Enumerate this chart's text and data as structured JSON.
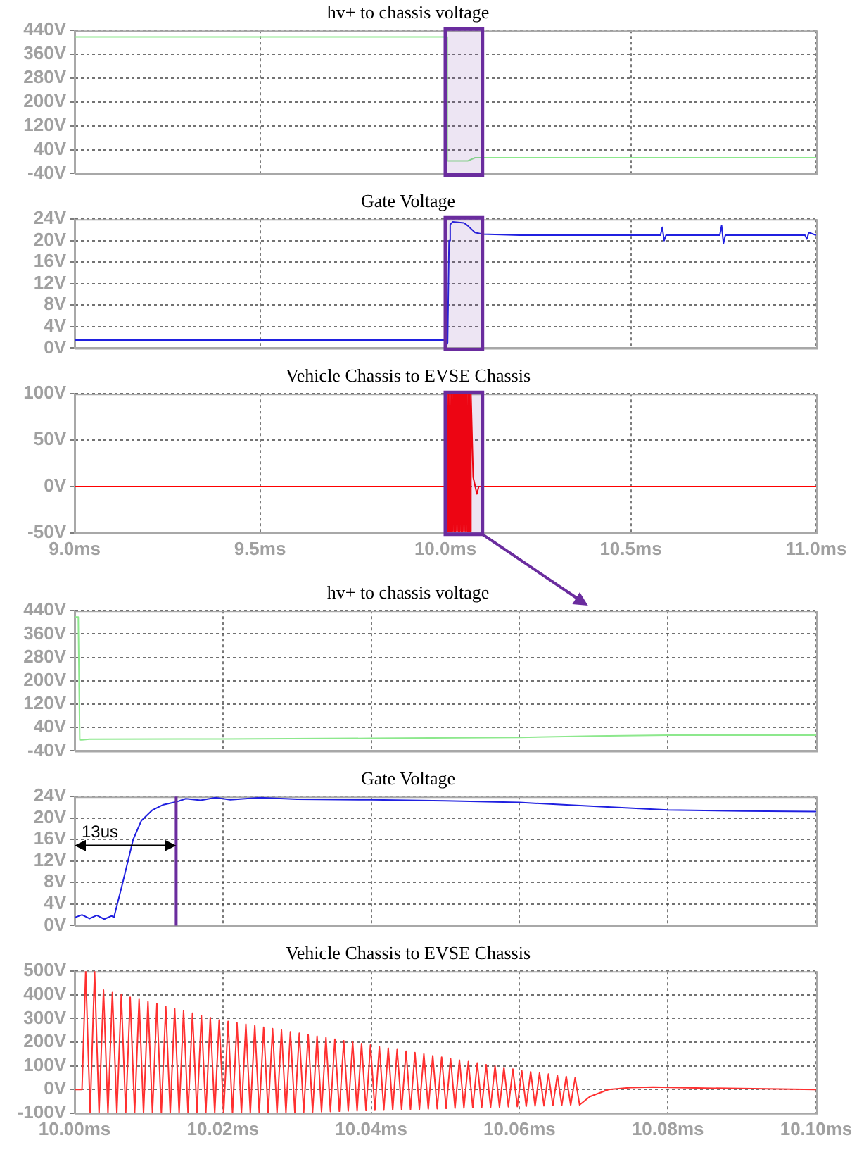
{
  "chart_data": [
    {
      "type": "line",
      "title": "hv+ to chassis voltage",
      "color": "#8de88d",
      "grid": true,
      "marker": "none",
      "line_style": "solid",
      "tick_labels": "y",
      "xlim": [
        9.0,
        11.0
      ],
      "xticks": [
        {
          "value": 9.0,
          "label": null
        },
        {
          "value": 9.5,
          "label": null
        },
        {
          "value": 10.0,
          "label": null
        },
        {
          "value": 10.5,
          "label": null
        },
        {
          "value": 11.0,
          "label": null
        }
      ],
      "ylim": [
        -40,
        440
      ],
      "yticks": [
        {
          "value": -40,
          "label": "-40V"
        },
        {
          "value": 40,
          "label": "40V"
        },
        {
          "value": 120,
          "label": "120V"
        },
        {
          "value": 200,
          "label": "200V"
        },
        {
          "value": 280,
          "label": "280V"
        },
        {
          "value": 360,
          "label": "360V"
        },
        {
          "value": 440,
          "label": "440V"
        }
      ],
      "x": [
        9.0,
        10.003,
        10.005,
        10.06,
        10.08,
        11.0
      ],
      "bands": [
        {
          "axis": "x",
          "from": 10.0,
          "to": 10.1,
          "color": "#6a2c9e"
        }
      ],
      "values": [
        418,
        418,
        2,
        2,
        13,
        13
      ]
    },
    {
      "type": "line",
      "title": "Gate Voltage",
      "color": "#2020e0",
      "grid": true,
      "marker": "none",
      "line_style": "solid",
      "tick_labels": "y",
      "xlim": [
        9.0,
        11.0
      ],
      "xticks": [
        {
          "value": 9.0,
          "label": null
        },
        {
          "value": 9.5,
          "label": null
        },
        {
          "value": 10.0,
          "label": null
        },
        {
          "value": 10.5,
          "label": null
        },
        {
          "value": 11.0,
          "label": null
        }
      ],
      "ylim": [
        0,
        24
      ],
      "yticks": [
        {
          "value": 0,
          "label": "0V"
        },
        {
          "value": 4,
          "label": "4V"
        },
        {
          "value": 8,
          "label": "8V"
        },
        {
          "value": 12,
          "label": "12V"
        },
        {
          "value": 16,
          "label": "16V"
        },
        {
          "value": 20,
          "label": "20V"
        },
        {
          "value": 24,
          "label": "24V"
        }
      ],
      "x": [
        9.0,
        10.0,
        10.003,
        10.006,
        10.01,
        10.013,
        10.02,
        10.05,
        10.06,
        10.08,
        10.1,
        10.2,
        10.58,
        10.585,
        10.59,
        10.595,
        10.74,
        10.745,
        10.75,
        10.755,
        10.97,
        10.975,
        10.98,
        11.0
      ],
      "bands": [
        {
          "axis": "x",
          "from": 10.0,
          "to": 10.1,
          "color": "#6a2c9e"
        }
      ],
      "values": [
        1.5,
        1.5,
        0.5,
        1,
        20,
        23,
        23.5,
        23.3,
        22.8,
        21.5,
        21.2,
        21,
        21,
        22.5,
        20,
        21,
        21,
        22.8,
        19.5,
        21,
        21,
        20.3,
        21.5,
        21
      ]
    },
    {
      "type": "line",
      "title": "Vehicle Chassis to EVSE Chassis",
      "color": "#ff0000",
      "grid": true,
      "marker": "none",
      "line_style": "solid",
      "xlim": [
        9.0,
        11.0
      ],
      "xticks": [
        {
          "value": 9.0,
          "label": "9.0ms"
        },
        {
          "value": 9.5,
          "label": "9.5ms"
        },
        {
          "value": 10.0,
          "label": "10.0ms"
        },
        {
          "value": 10.5,
          "label": "10.5ms"
        },
        {
          "value": 11.0,
          "label": "11.0ms"
        }
      ],
      "ylim": [
        -50,
        100
      ],
      "yticks": [
        {
          "value": -50,
          "label": "-50V"
        },
        {
          "value": 0,
          "label": "0V"
        },
        {
          "value": 50,
          "label": "50V"
        },
        {
          "value": 100,
          "label": "100V"
        }
      ],
      "x": [
        9.0,
        10.0,
        10.001,
        10.003,
        10.005,
        10.007,
        10.009,
        10.011,
        10.013,
        10.015,
        10.017,
        10.019,
        10.021,
        10.023,
        10.025,
        10.027,
        10.029,
        10.031,
        10.033,
        10.035,
        10.037,
        10.039,
        10.041,
        10.043,
        10.045,
        10.047,
        10.049,
        10.051,
        10.053,
        10.055,
        10.057,
        10.059,
        10.061,
        10.063,
        10.065,
        10.067,
        10.069,
        10.075,
        10.085,
        10.09,
        11.0
      ],
      "bands": [
        {
          "axis": "x",
          "from": 10.0,
          "to": 10.1,
          "color": "#6a2c9e"
        }
      ],
      "values": [
        0,
        0,
        100,
        -48,
        100,
        -48,
        100,
        -48,
        100,
        -48,
        100,
        -48,
        100,
        -48,
        100,
        -48,
        100,
        -48,
        100,
        -48,
        100,
        -48,
        100,
        -48,
        100,
        -48,
        100,
        -48,
        100,
        -48,
        100,
        -48,
        100,
        -48,
        100,
        -48,
        100,
        10,
        -8,
        0,
        0
      ]
    },
    {
      "type": "line",
      "title": "hv+ to chassis voltage",
      "color": "#8de88d",
      "grid": true,
      "marker": "none",
      "line_style": "solid",
      "tick_labels": "y",
      "xlim": [
        10.0,
        10.1
      ],
      "xticks": [
        {
          "value": 10.0,
          "label": null
        },
        {
          "value": 10.02,
          "label": null
        },
        {
          "value": 10.04,
          "label": null
        },
        {
          "value": 10.06,
          "label": null
        },
        {
          "value": 10.08,
          "label": null
        },
        {
          "value": 10.1,
          "label": null
        }
      ],
      "ylim": [
        -40,
        440
      ],
      "yticks": [
        {
          "value": -40,
          "label": "-40V"
        },
        {
          "value": 40,
          "label": "40V"
        },
        {
          "value": 120,
          "label": "120V"
        },
        {
          "value": 200,
          "label": "200V"
        },
        {
          "value": 280,
          "label": "280V"
        },
        {
          "value": 360,
          "label": "360V"
        },
        {
          "value": 440,
          "label": "440V"
        }
      ],
      "x": [
        10.0,
        10.0005,
        10.0007,
        10.001,
        10.002,
        10.02,
        10.04,
        10.06,
        10.07,
        10.08,
        10.1
      ],
      "values": [
        418,
        418,
        -2,
        -2,
        0,
        1,
        3,
        6,
        11,
        14,
        14
      ]
    },
    {
      "type": "line",
      "title": "Gate Voltage",
      "color": "#2020e0",
      "grid": true,
      "marker": "none",
      "line_style": "solid",
      "tick_labels": "y",
      "xlim": [
        10.0,
        10.1
      ],
      "xticks": [
        {
          "value": 10.0,
          "label": null
        },
        {
          "value": 10.02,
          "label": null
        },
        {
          "value": 10.04,
          "label": null
        },
        {
          "value": 10.06,
          "label": null
        },
        {
          "value": 10.08,
          "label": null
        },
        {
          "value": 10.1,
          "label": null
        }
      ],
      "ylim": [
        0,
        24
      ],
      "yticks": [
        {
          "value": 0,
          "label": "0V"
        },
        {
          "value": 4,
          "label": "4V"
        },
        {
          "value": 8,
          "label": "8V"
        },
        {
          "value": 12,
          "label": "12V"
        },
        {
          "value": 16,
          "label": "16V"
        },
        {
          "value": 20,
          "label": "20V"
        },
        {
          "value": 24,
          "label": "24V"
        }
      ],
      "ref_lines": [
        {
          "axis": "x",
          "value": 10.0137,
          "label": "13us",
          "color": "#6a2c9e"
        }
      ],
      "x": [
        10.0,
        10.001,
        10.002,
        10.003,
        10.004,
        10.005,
        10.0053,
        10.0065,
        10.0079,
        10.009,
        10.0105,
        10.012,
        10.0137,
        10.015,
        10.017,
        10.019,
        10.021,
        10.025,
        10.03,
        10.04,
        10.05,
        10.06,
        10.07,
        10.08,
        10.09,
        10.1
      ],
      "values": [
        1.5,
        2,
        1.3,
        1.9,
        1.2,
        1.8,
        1.5,
        8,
        16,
        19.5,
        21.5,
        22.5,
        23,
        23.6,
        23.3,
        23.8,
        23.4,
        23.8,
        23.5,
        23.4,
        23.2,
        22.9,
        22.2,
        21.5,
        21.3,
        21.2
      ]
    },
    {
      "type": "line",
      "title": "Vehicle Chassis to EVSE Chassis",
      "color": "#ff3030",
      "grid": true,
      "marker": "none",
      "line_style": "solid",
      "xlim": [
        10.0,
        10.1
      ],
      "xticks": [
        {
          "value": 10.0,
          "label": "10.00ms"
        },
        {
          "value": 10.02,
          "label": "10.02ms"
        },
        {
          "value": 10.04,
          "label": "10.04ms"
        },
        {
          "value": 10.06,
          "label": "10.06ms"
        },
        {
          "value": 10.08,
          "label": "10.08ms"
        },
        {
          "value": 10.1,
          "label": "10.10ms"
        }
      ],
      "ylim": [
        -100,
        500
      ],
      "yticks": [
        {
          "value": -100,
          "label": "-100V"
        },
        {
          "value": 0,
          "label": "0V"
        },
        {
          "value": 100,
          "label": "100V"
        },
        {
          "value": 200,
          "label": "200V"
        },
        {
          "value": 300,
          "label": "300V"
        },
        {
          "value": 400,
          "label": "400V"
        },
        {
          "value": 500,
          "label": "500V"
        }
      ],
      "x": [
        10.0,
        10.001,
        10.0015,
        10.0021,
        10.0027,
        10.0033,
        10.0039,
        10.0045,
        10.0051,
        10.0057,
        10.0063,
        10.0069,
        10.0075,
        10.0081,
        10.0087,
        10.0093,
        10.0099,
        10.0105,
        10.0111,
        10.0117,
        10.0123,
        10.0129,
        10.0135,
        10.0141,
        10.0147,
        10.0153,
        10.0159,
        10.0165,
        10.0171,
        10.0177,
        10.0183,
        10.0189,
        10.0195,
        10.0201,
        10.0207,
        10.0213,
        10.0219,
        10.0225,
        10.0231,
        10.0237,
        10.0243,
        10.0249,
        10.0255,
        10.0261,
        10.0267,
        10.0273,
        10.0279,
        10.0285,
        10.0291,
        10.0297,
        10.0303,
        10.0309,
        10.0315,
        10.0321,
        10.0327,
        10.0333,
        10.0339,
        10.0345,
        10.0351,
        10.0357,
        10.0363,
        10.0369,
        10.0375,
        10.0381,
        10.0387,
        10.0393,
        10.0399,
        10.0405,
        10.0411,
        10.0417,
        10.0423,
        10.0429,
        10.0435,
        10.0441,
        10.0447,
        10.0453,
        10.0459,
        10.0465,
        10.0471,
        10.0477,
        10.0483,
        10.0489,
        10.0495,
        10.0501,
        10.0507,
        10.0513,
        10.0519,
        10.0525,
        10.0531,
        10.0537,
        10.0543,
        10.0549,
        10.0555,
        10.0561,
        10.0567,
        10.0573,
        10.0579,
        10.0585,
        10.0591,
        10.0597,
        10.0603,
        10.0609,
        10.0615,
        10.0621,
        10.0627,
        10.0633,
        10.0639,
        10.0645,
        10.0651,
        10.0657,
        10.0663,
        10.0669,
        10.0675,
        10.0681,
        10.0695,
        10.072,
        10.075,
        10.078,
        10.085,
        10.095,
        10.1
      ],
      "values": [
        0,
        0,
        500,
        -100,
        500,
        -100,
        420,
        -100,
        410,
        -100,
        400,
        -100,
        390,
        -100,
        381,
        -100,
        371,
        -100,
        362,
        -100,
        352,
        -100,
        342,
        -100,
        333,
        -100,
        323,
        -100,
        313,
        -100,
        304,
        -100,
        294,
        -100,
        288,
        -100,
        282,
        -100,
        276,
        -100,
        270,
        -100,
        263,
        -100,
        257,
        -99,
        251,
        -98,
        244,
        -97,
        238,
        -96,
        232,
        -95,
        225,
        -94,
        219,
        -93,
        213,
        -92,
        206,
        -91,
        200,
        -90,
        194,
        -89,
        188,
        -88,
        181,
        -87,
        175,
        -86,
        169,
        -85,
        162,
        -84,
        156,
        -83,
        150,
        -82,
        143,
        -81,
        137,
        -80,
        131,
        -79,
        124,
        -78,
        118,
        -77,
        112,
        -76,
        105,
        -75,
        99,
        -74,
        93,
        -73,
        86,
        -72,
        80,
        -71,
        75,
        -70,
        70,
        -69,
        65,
        -68,
        60,
        -67,
        55,
        -66,
        50,
        -65,
        -30,
        0,
        8,
        10,
        6,
        2,
        0
      ]
    }
  ]
}
